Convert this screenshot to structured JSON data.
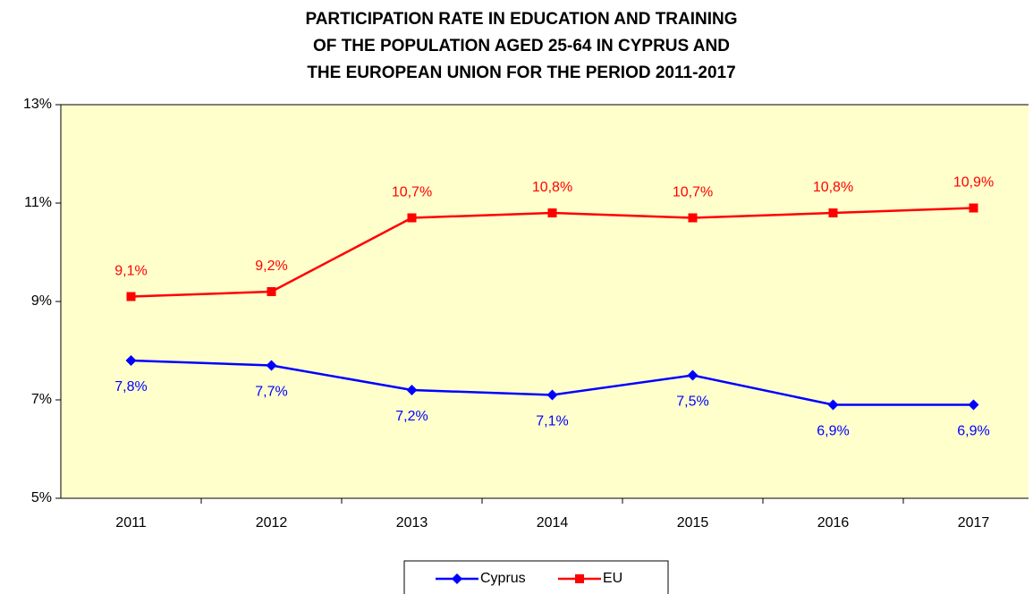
{
  "chart_data": {
    "type": "line",
    "title": [
      "PARTICIPATION RATE IN EDUCATION AND TRAINING",
      "OF THE POPULATION AGED 25-64 IN CYPRUS AND",
      "THE EUROPEAN UNION FOR THE PERIOD 2011-2017"
    ],
    "categories": [
      "2011",
      "2012",
      "2013",
      "2014",
      "2015",
      "2016",
      "2017"
    ],
    "series": [
      {
        "name": "Cyprus",
        "color": "#0000ff",
        "marker": "diamond",
        "values": [
          7.8,
          7.7,
          7.2,
          7.1,
          7.5,
          6.9,
          6.9
        ],
        "value_labels": [
          "7,8%",
          "7,7%",
          "7,2%",
          "7,1%",
          "7,5%",
          "6,9%",
          "6,9%"
        ]
      },
      {
        "name": "EU",
        "color": "#ff0000",
        "marker": "square",
        "values": [
          9.1,
          9.2,
          10.7,
          10.8,
          10.7,
          10.8,
          10.9
        ],
        "value_labels": [
          "9,1%",
          "9,2%",
          "10,7%",
          "10,8%",
          "10,7%",
          "10,8%",
          "10,9%"
        ]
      }
    ],
    "ylim": [
      5,
      13
    ],
    "yticks": [
      {
        "value": 5,
        "label": "5%"
      },
      {
        "value": 7,
        "label": "7%"
      },
      {
        "value": 9,
        "label": "9%"
      },
      {
        "value": 11,
        "label": "11%"
      },
      {
        "value": 13,
        "label": "13%"
      }
    ],
    "plot_background": "#ffffcc",
    "legend": "bottom"
  }
}
